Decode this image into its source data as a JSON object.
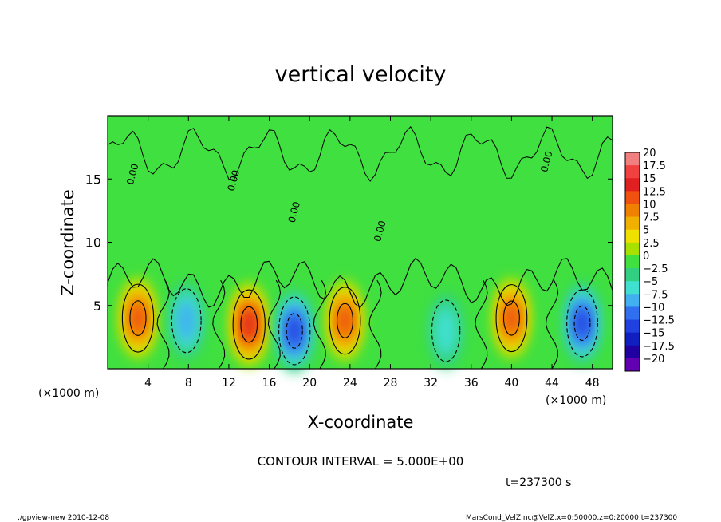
{
  "chart_data": {
    "type": "heatmap",
    "title": "vertical velocity",
    "xlabel": "X-coordinate",
    "ylabel": "Z-coordinate",
    "x_unit_left": "(×1000 m)",
    "x_unit_right": "(×1000 m)",
    "xlim": [
      0,
      50
    ],
    "ylim": [
      0,
      20
    ],
    "x_ticks": [
      4,
      8,
      12,
      16,
      20,
      24,
      28,
      32,
      36,
      40,
      44,
      48
    ],
    "y_ticks": [
      5,
      10,
      15
    ],
    "contour_interval_text": "CONTOUR INTERVAL = 5.000E+00",
    "time_text": "t=237300 s",
    "contour_labels": [
      "0.00",
      "0.00",
      "0.00",
      "0.00",
      "0.00"
    ],
    "colorbar": {
      "labels": [
        "20",
        "17.5",
        "15",
        "12.5",
        "10",
        "7.5",
        "5",
        "2.5",
        "0",
        "−2.5",
        "−5",
        "−7.5",
        "−10",
        "−12.5",
        "−15",
        "−17.5",
        "−20"
      ],
      "colors": [
        "#f08080",
        "#f04040",
        "#e02020",
        "#f05010",
        "#f08000",
        "#f0b000",
        "#f0e000",
        "#a8e000",
        "#40e040",
        "#30d080",
        "#40e0d0",
        "#40b0f0",
        "#3070f0",
        "#2040e0",
        "#1020c0",
        "#2000a0",
        "#6000b0"
      ]
    },
    "cells": [
      {
        "x": 3,
        "z": 4.0,
        "value": 13
      },
      {
        "x": 7.8,
        "z": 3.8,
        "value": -8
      },
      {
        "x": 14,
        "z": 3.5,
        "value": 15
      },
      {
        "x": 18.5,
        "z": 3.0,
        "value": -13
      },
      {
        "x": 23.5,
        "z": 3.8,
        "value": 12
      },
      {
        "x": 33.5,
        "z": 3.0,
        "value": -5
      },
      {
        "x": 40,
        "z": 4.0,
        "value": 12
      },
      {
        "x": 47,
        "z": 3.6,
        "value": -12
      }
    ]
  },
  "footer": {
    "left": "./gpview-new  2010-12-08",
    "right": "MarsCond_VelZ.nc@VelZ,x=0:50000,z=0:20000,t=237300"
  }
}
